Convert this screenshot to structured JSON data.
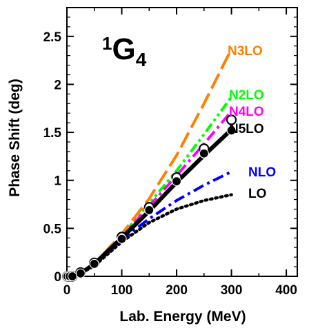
{
  "chart_data": {
    "type": "line",
    "title": {
      "main": "G",
      "sup": "1",
      "sub": "4"
    },
    "xlabel": "Lab. Energy (MeV)",
    "ylabel": "Phase Shift (deg)",
    "xlim": [
      0,
      420
    ],
    "ylim": [
      0,
      2.8
    ],
    "xticks": [
      0,
      100,
      200,
      300,
      400
    ],
    "xtick_labels": [
      "0",
      "100",
      "200",
      "300",
      "400"
    ],
    "yticks": [
      0,
      0.5,
      1,
      1.5,
      2,
      2.5
    ],
    "ytick_labels": [
      "0",
      "0.5",
      "1",
      "1.5",
      "2",
      "2.5"
    ],
    "grid": false,
    "legend": "labels beside line ends",
    "series": [
      {
        "name": "LO",
        "color": "#000000",
        "dash": "dot",
        "x": [
          0,
          25,
          50,
          100,
          150,
          200,
          250,
          300
        ],
        "y": [
          0,
          0.03,
          0.11,
          0.36,
          0.56,
          0.7,
          0.79,
          0.85
        ]
      },
      {
        "name": "NLO",
        "color": "#0000ff",
        "dash": "dashdot",
        "x": [
          0,
          25,
          50,
          100,
          150,
          200,
          250,
          300
        ],
        "y": [
          0,
          0.03,
          0.12,
          0.38,
          0.6,
          0.79,
          0.95,
          1.09
        ]
      },
      {
        "name": "N2LO",
        "color": "#00ff00",
        "dash": "dashdotdot",
        "x": [
          0,
          25,
          50,
          100,
          150,
          200,
          250,
          300
        ],
        "y": [
          0,
          0.03,
          0.13,
          0.42,
          0.76,
          1.1,
          1.48,
          1.87
        ]
      },
      {
        "name": "N3LO",
        "color": "#ff7f00",
        "dash": "longdash",
        "x": [
          0,
          25,
          50,
          100,
          150,
          200,
          250,
          300
        ],
        "y": [
          0,
          0.03,
          0.13,
          0.44,
          0.81,
          1.26,
          1.8,
          2.37
        ]
      },
      {
        "name": "N4LO",
        "color": "#ff00ff",
        "dash": "dashdot",
        "x": [
          0,
          25,
          50,
          100,
          150,
          200,
          250,
          300
        ],
        "y": [
          0,
          0.03,
          0.13,
          0.41,
          0.73,
          1.05,
          1.38,
          1.72
        ]
      },
      {
        "name": "N5LO",
        "color": "#000000",
        "dash": "solid",
        "x": [
          0,
          25,
          50,
          100,
          150,
          200,
          250,
          300
        ],
        "y": [
          0,
          0.03,
          0.13,
          0.4,
          0.68,
          0.98,
          1.26,
          1.53
        ]
      }
    ],
    "points_open": {
      "x": [
        1,
        5,
        10,
        25,
        50,
        100,
        150,
        200,
        250,
        300
      ],
      "y": [
        0,
        0,
        0,
        0.04,
        0.14,
        0.41,
        0.72,
        1.03,
        1.33,
        1.63
      ]
    },
    "points_filled": {
      "x": [
        1,
        5,
        10,
        25,
        50,
        100,
        150,
        200,
        250,
        300
      ],
      "y": [
        0,
        0,
        0,
        0.03,
        0.13,
        0.39,
        0.69,
        0.99,
        1.28,
        1.52
      ]
    }
  }
}
